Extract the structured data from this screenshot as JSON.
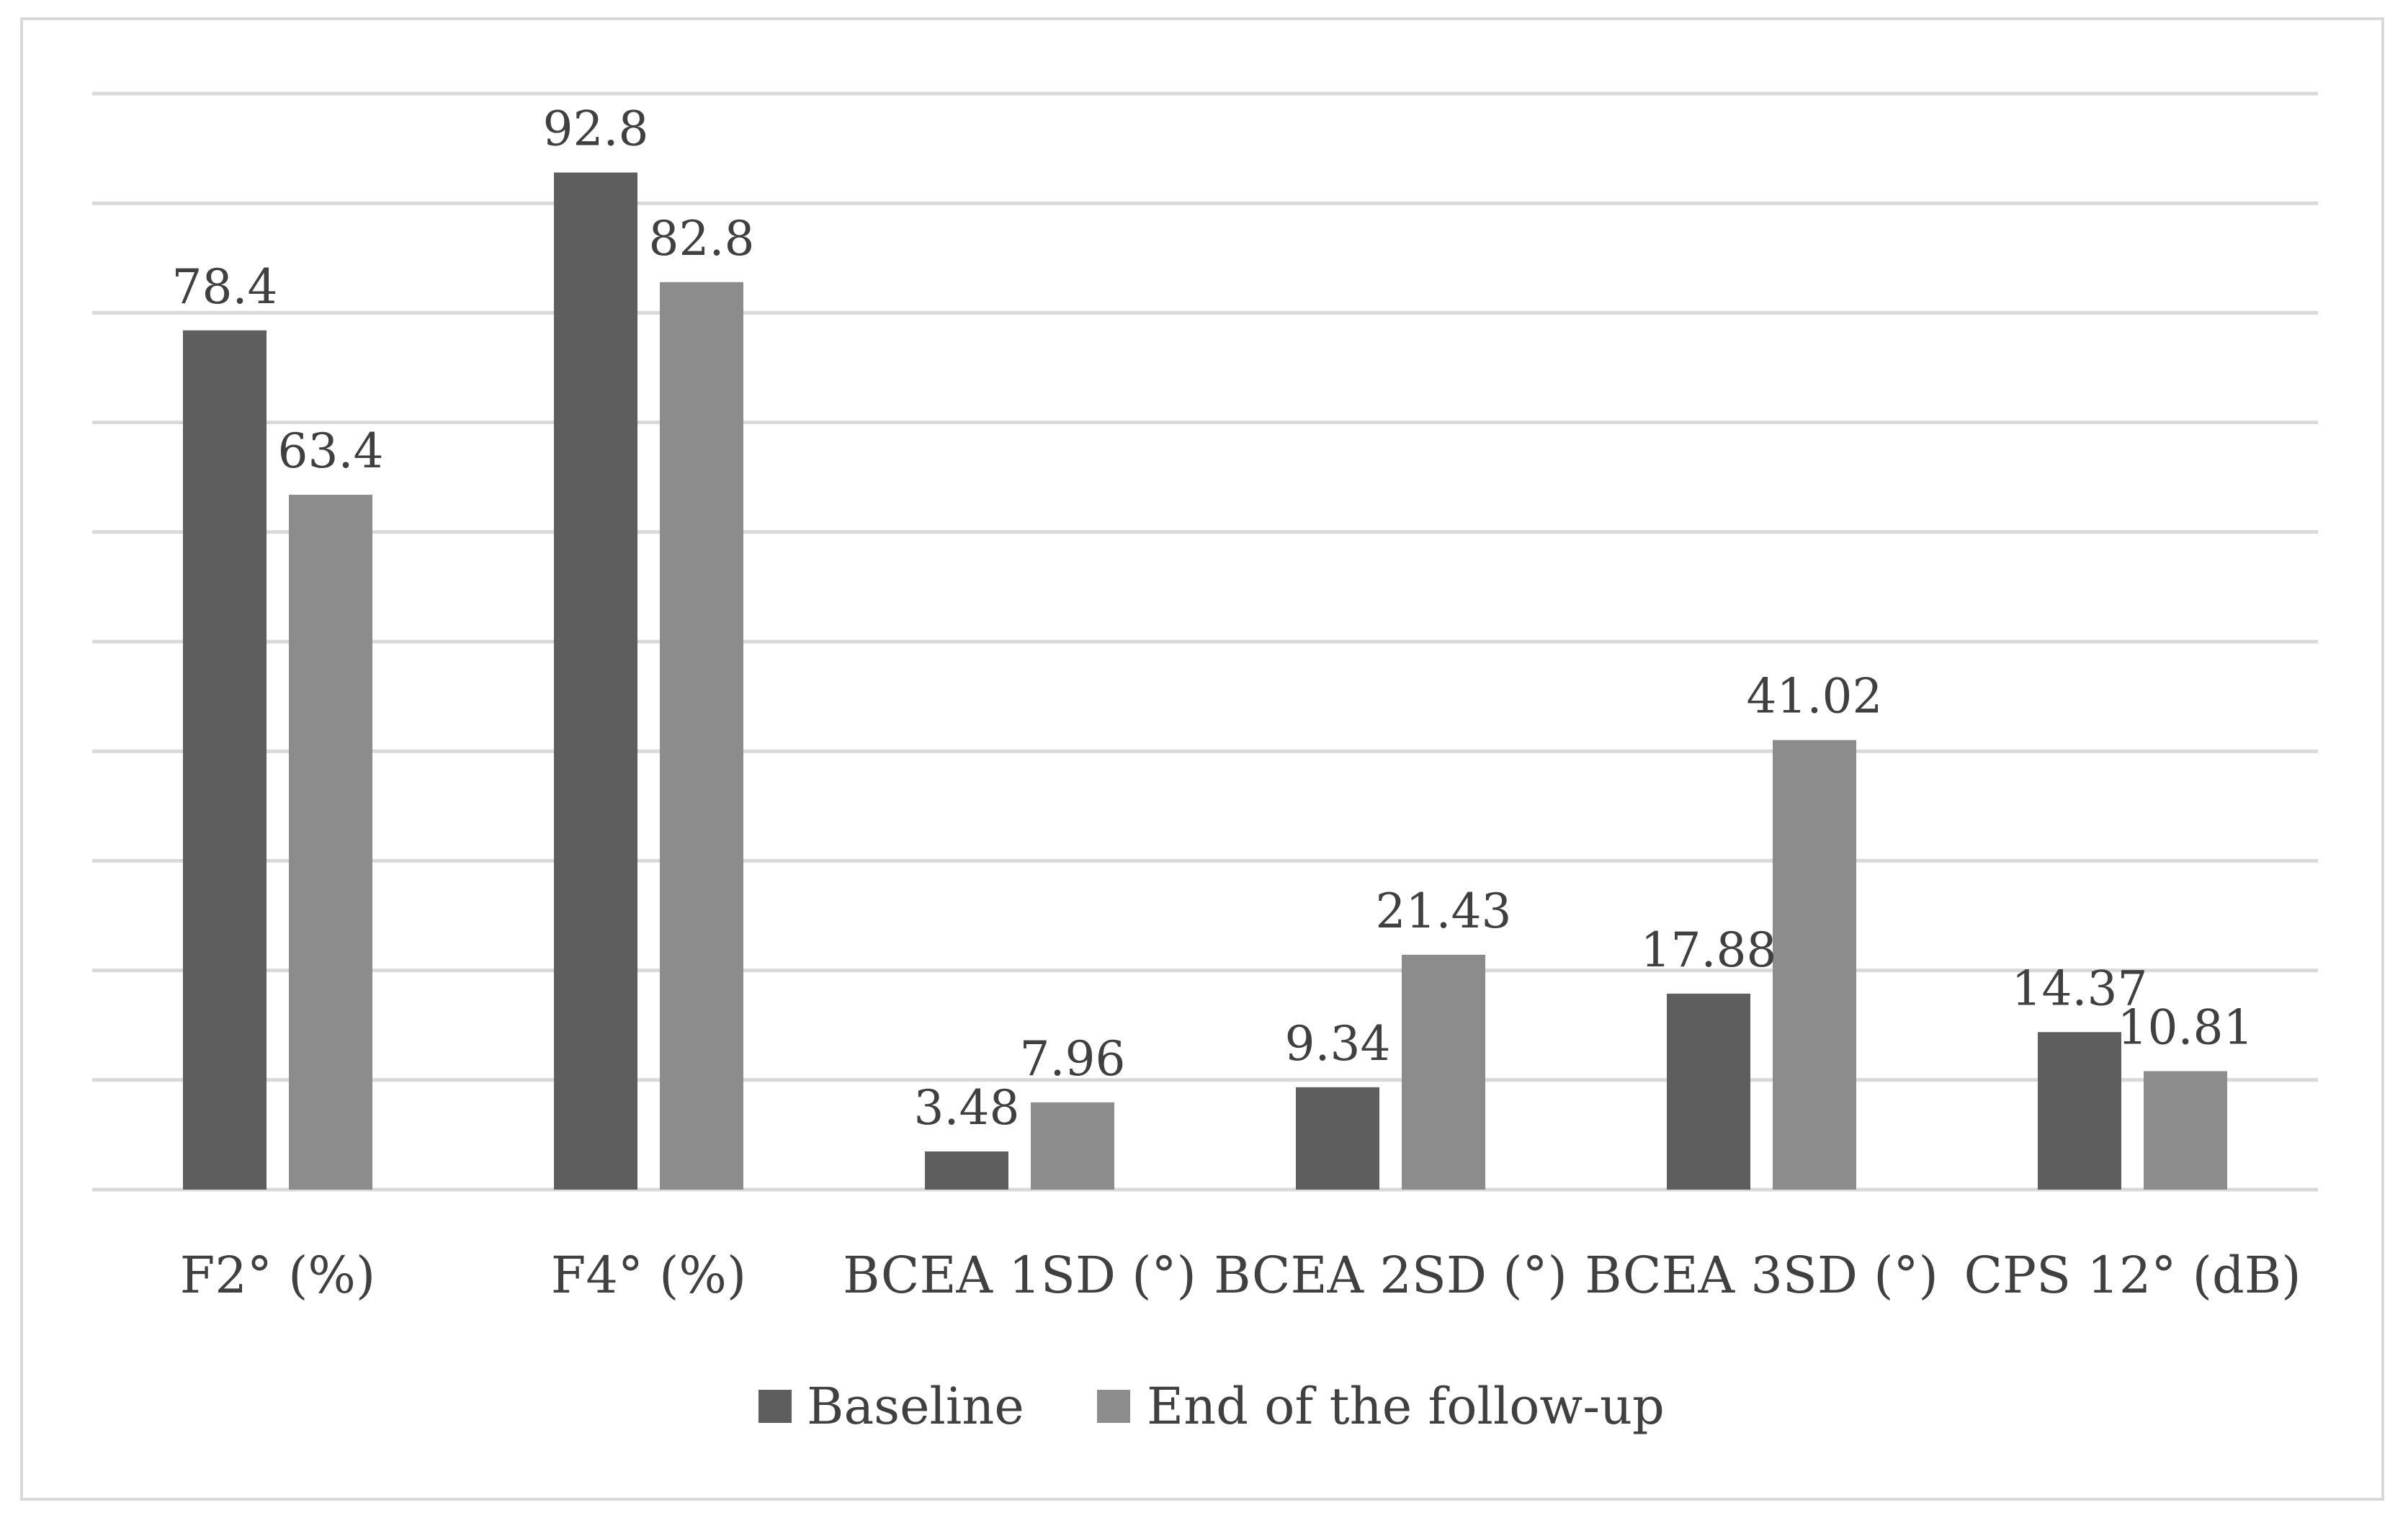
{
  "chart_data": {
    "type": "bar",
    "categories": [
      "F2° (%)",
      "F4° (%)",
      "BCEA 1SD (°)",
      "BCEA 2SD (°)",
      "BCEA 3SD (°)",
      "CPS 12° (dB)"
    ],
    "series": [
      {
        "name": "Baseline",
        "values": [
          78.4,
          92.8,
          3.48,
          9.34,
          17.88,
          14.37
        ],
        "value_labels": [
          "78.4",
          "92.8",
          "3.48",
          "9.34",
          "17.88",
          "14.37"
        ],
        "color": "#5e5e5e"
      },
      {
        "name": "End of the follow-up",
        "values": [
          63.4,
          82.8,
          7.96,
          21.43,
          41.02,
          10.81
        ],
        "value_labels": [
          "63.4",
          "82.8",
          "7.96",
          "21.43",
          "41.02",
          "10.81"
        ],
        "color": "#8c8c8c"
      }
    ],
    "ylim": [
      0,
      100
    ],
    "y_gridline_step": 10,
    "y_axis_labels_visible": false,
    "grid": true,
    "gridline_color": "#d9d9d9",
    "legend_position": "bottom-center",
    "title": "",
    "xlabel": "",
    "ylabel": ""
  }
}
